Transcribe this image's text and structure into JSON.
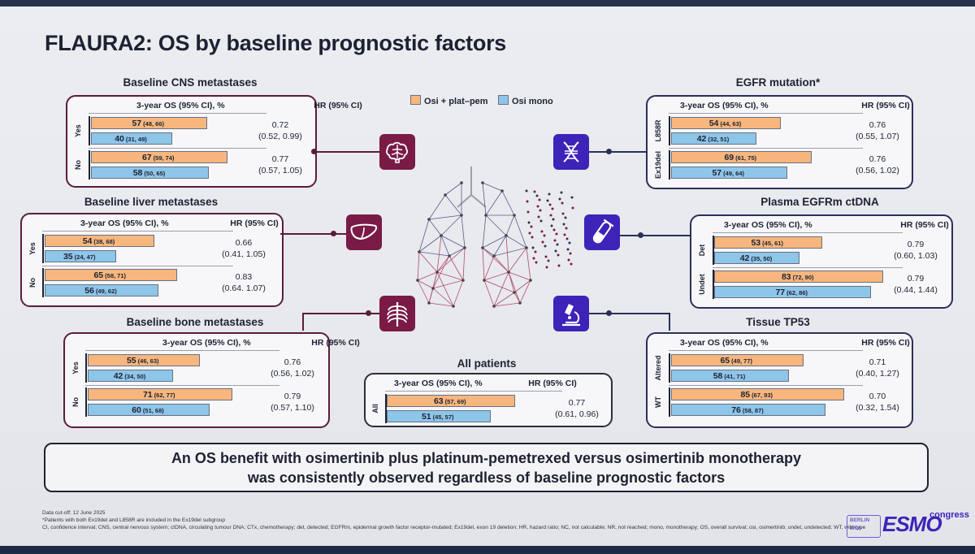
{
  "title": "FLAURA2: OS by baseline prognostic factors",
  "legend": {
    "orange": "Osi + plat–pem",
    "blue": "Osi mono"
  },
  "colors": {
    "orange": "#f7b67d",
    "blue": "#8ec6ea",
    "plum": "#7a1a46",
    "icon_blue": "#3d23b8"
  },
  "header": {
    "os": "3-year OS (95% CI), %",
    "hr": "HR (95% CI)"
  },
  "chart_data": {
    "type": "bar",
    "x_unit": "3-year OS (95% CI), %",
    "series_names": [
      "Osi + plat–pem",
      "Osi mono"
    ],
    "panels": [
      {
        "title": "Baseline CNS metastases",
        "icon": "brain-icon",
        "groups": [
          {
            "label": "Yes",
            "osi_plat": {
              "v": "57",
              "ci": "(48, 66)"
            },
            "osi_mono": {
              "v": "40",
              "ci": "(31, 49)"
            },
            "hr": "0.72",
            "hr_ci": "(0.52, 0.99)"
          },
          {
            "label": "No",
            "osi_plat": {
              "v": "67",
              "ci": "(59, 74)"
            },
            "osi_mono": {
              "v": "58",
              "ci": "(50, 65)"
            },
            "hr": "0.77",
            "hr_ci": "(0.57, 1.05)"
          }
        ]
      },
      {
        "title": "Baseline liver metastases",
        "icon": "liver-icon",
        "groups": [
          {
            "label": "Yes",
            "osi_plat": {
              "v": "54",
              "ci": "(38, 68)"
            },
            "osi_mono": {
              "v": "35",
              "ci": "(24, 47)"
            },
            "hr": "0.66",
            "hr_ci": "(0.41, 1.05)"
          },
          {
            "label": "No",
            "osi_plat": {
              "v": "65",
              "ci": "(58, 71)"
            },
            "osi_mono": {
              "v": "56",
              "ci": "(49, 62)"
            },
            "hr": "0.83",
            "hr_ci": "(0.64. 1.07)"
          }
        ]
      },
      {
        "title": "Baseline bone metastases",
        "icon": "ribcage-icon",
        "groups": [
          {
            "label": "Yes",
            "osi_plat": {
              "v": "55",
              "ci": "(46, 63)"
            },
            "osi_mono": {
              "v": "42",
              "ci": "(34, 50)"
            },
            "hr": "0.76",
            "hr_ci": "(0.56, 1.02)"
          },
          {
            "label": "No",
            "osi_plat": {
              "v": "71",
              "ci": "(62, 77)"
            },
            "osi_mono": {
              "v": "60",
              "ci": "(51, 68)"
            },
            "hr": "0.79",
            "hr_ci": "(0.57, 1.10)"
          }
        ]
      },
      {
        "title": "EGFR mutation*",
        "icon": "dna-icon",
        "groups": [
          {
            "label": "L858R",
            "osi_plat": {
              "v": "54",
              "ci": "(44, 63)"
            },
            "osi_mono": {
              "v": "42",
              "ci": "(32, 51)"
            },
            "hr": "0.76",
            "hr_ci": "(0.55, 1.07)"
          },
          {
            "label": "Ex19del",
            "osi_plat": {
              "v": "69",
              "ci": "(61, 75)"
            },
            "osi_mono": {
              "v": "57",
              "ci": "(49, 64)"
            },
            "hr": "0.76",
            "hr_ci": "(0.56, 1.02)"
          }
        ]
      },
      {
        "title": "Plasma EGFRm ctDNA",
        "icon": "test-tube-icon",
        "groups": [
          {
            "label": "Det",
            "osi_plat": {
              "v": "53",
              "ci": "(45, 61)"
            },
            "osi_mono": {
              "v": "42",
              "ci": "(35, 50)"
            },
            "hr": "0.79",
            "hr_ci": "(0.60, 1.03)"
          },
          {
            "label": "Undet",
            "osi_plat": {
              "v": "83",
              "ci": "(72, 90)"
            },
            "osi_mono": {
              "v": "77",
              "ci": "(62, 86)"
            },
            "hr": "0.79",
            "hr_ci": "(0.44, 1.44)"
          }
        ]
      },
      {
        "title": "Tissue TP53",
        "icon": "microscope-icon",
        "groups": [
          {
            "label": "Altered",
            "osi_plat": {
              "v": "65",
              "ci": "(49, 77)"
            },
            "osi_mono": {
              "v": "58",
              "ci": "(41, 71)"
            },
            "hr": "0.71",
            "hr_ci": "(0.40, 1.27)"
          },
          {
            "label": "WT",
            "osi_plat": {
              "v": "85",
              "ci": "(67, 93)"
            },
            "osi_mono": {
              "v": "76",
              "ci": "(58, 87)"
            },
            "hr": "0.70",
            "hr_ci": "(0.32, 1.54)"
          }
        ]
      },
      {
        "title": "All patients",
        "icon": "",
        "groups": [
          {
            "label": "All",
            "osi_plat": {
              "v": "63",
              "ci": "(57, 69)"
            },
            "osi_mono": {
              "v": "51",
              "ci": "(45, 57)"
            },
            "hr": "0.77",
            "hr_ci": "(0.61, 0.96)"
          }
        ]
      }
    ]
  },
  "conclusion": {
    "line1": "An OS benefit with osimertinib plus platinum-pemetrexed versus osimertinib monotherapy",
    "line2": "was consistently observed regardless of baseline prognostic factors"
  },
  "footnotes": {
    "line1": "Data cut-off: 12 June 2025",
    "line2": "*Patients with both Ex19del and L858R are included in the Ex19del subgroup",
    "line3": "CI, confidence interval; CNS, central nervous system; ctDNA, circulating tumour DNA; CTx, chemotherapy; det, detected; EGFRm, epidermal growth factor receptor-mutated; Ex19del, exon 19 deletion; HR, hazard ratio; NC, not calculable; NR, not reached; mono, monotherapy; OS, overall survival; osi, osimertinib; undet, undetected; WT, wild-type"
  },
  "logo": {
    "city": "BERLIN",
    "year": "2025",
    "brand": "ESMO",
    "suffix": "congress"
  }
}
